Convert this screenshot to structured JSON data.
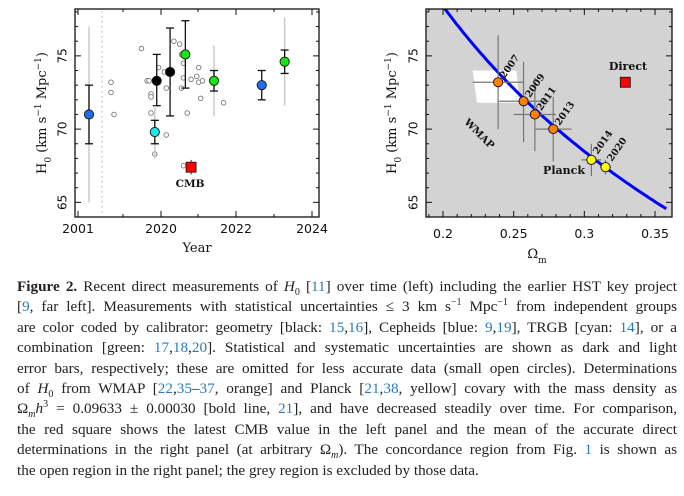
{
  "chart_data": [
    {
      "type": "scatter",
      "panel": "left",
      "title": "",
      "xlabel": "Year",
      "ylabel": "H0 (km s^-1 Mpc^-1)",
      "ylabel_parts": {
        "main": "H",
        "sub": "0",
        "units": " (km s",
        "sup1": "-1",
        "mid": " Mpc",
        "sup2": "-1",
        "end": ")"
      },
      "x_tick_labels": [
        "2001",
        "2020",
        "2022",
        "2024"
      ],
      "x_axis_note": "broken axis: 2001 point at far left separated by dotted line; main axis 2018.6–2024.1",
      "xlim": [
        2018.6,
        2024.1
      ],
      "ylim": [
        64,
        78.2
      ],
      "y_ticks": [
        65,
        70,
        75
      ],
      "accurate_points": [
        {
          "label": "HST key project",
          "x": "2001",
          "y": 71.0,
          "stat": [
            69.0,
            73.0
          ],
          "sys": [
            65.0,
            77.0
          ],
          "color": "#1e6ff0",
          "calibrator": "Cepheids"
        },
        {
          "x": 2019.85,
          "y": 73.3,
          "stat": [
            71.6,
            75.1
          ],
          "sys": null,
          "color": "#000000",
          "calibrator": "geometry"
        },
        {
          "x": 2019.8,
          "y": 69.8,
          "stat": [
            69.0,
            70.6
          ],
          "sys": [
            68.0,
            71.6
          ],
          "color": "#19e6e6",
          "calibrator": "TRGB"
        },
        {
          "x": 2020.2,
          "y": 73.9,
          "stat": [
            70.9,
            76.9
          ],
          "sys": null,
          "color": "#000000",
          "calibrator": "geometry"
        },
        {
          "x": 2020.6,
          "y": 75.1,
          "stat": [
            72.8,
            77.4
          ],
          "sys": null,
          "color": "#14e614",
          "calibrator": "combination"
        },
        {
          "x": 2021.35,
          "y": 73.3,
          "stat": [
            72.6,
            74.0
          ],
          "sys": [
            70.9,
            75.7
          ],
          "color": "#14e614",
          "calibrator": "combination"
        },
        {
          "x": 2022.6,
          "y": 73.0,
          "stat": [
            72.0,
            74.0
          ],
          "sys": null,
          "color": "#1e6ff0",
          "calibrator": "Cepheids"
        },
        {
          "x": 2023.2,
          "y": 74.6,
          "stat": [
            73.8,
            75.4
          ],
          "sys": [
            71.6,
            77.6
          ],
          "color": "#14e614",
          "calibrator": "combination"
        }
      ],
      "less_accurate_points": [
        {
          "x": "2001+",
          "y": 73.2
        },
        {
          "x": "2001+",
          "y": 72.5
        },
        {
          "x": "2001+",
          "y": 71.0
        },
        {
          "x": 2019.45,
          "y": 75.5
        },
        {
          "x": 2019.6,
          "y": 73.3
        },
        {
          "x": 2019.65,
          "y": 73.3
        },
        {
          "x": 2019.7,
          "y": 72.4
        },
        {
          "x": 2019.7,
          "y": 72.2
        },
        {
          "x": 2019.7,
          "y": 71.1
        },
        {
          "x": 2019.8,
          "y": 68.3
        },
        {
          "x": 2019.9,
          "y": 74.2
        },
        {
          "x": 2020.05,
          "y": 73.9
        },
        {
          "x": 2020.1,
          "y": 72.8
        },
        {
          "x": 2020.1,
          "y": 69.6
        },
        {
          "x": 2020.3,
          "y": 76.0
        },
        {
          "x": 2020.45,
          "y": 75.8
        },
        {
          "x": 2020.5,
          "y": 75.1
        },
        {
          "x": 2020.5,
          "y": 72.8
        },
        {
          "x": 2020.55,
          "y": 74.5
        },
        {
          "x": 2020.55,
          "y": 73.5
        },
        {
          "x": 2020.65,
          "y": 71.1
        },
        {
          "x": 2020.75,
          "y": 73.4
        },
        {
          "x": 2020.9,
          "y": 73.6
        },
        {
          "x": 2020.95,
          "y": 74.2
        },
        {
          "x": 2020.95,
          "y": 73.2
        },
        {
          "x": 2021.0,
          "y": 72.1
        },
        {
          "x": 2021.05,
          "y": 73.3
        },
        {
          "x": 2021.6,
          "y": 71.8
        },
        {
          "x": 2020.55,
          "y": 67.5
        }
      ],
      "reference": {
        "label": "CMB",
        "x": 2020.75,
        "y": 67.4,
        "err": [
          66.9,
          67.9
        ],
        "color": "#ff0000",
        "marker": "square"
      }
    },
    {
      "type": "scatter",
      "panel": "right",
      "xlabel": "Ωm",
      "ylabel": "H0 (km s^-1 Mpc^-1)",
      "ylabel_parts": {
        "main": "H",
        "sub": "0",
        "units": " (km s",
        "sup1": "-1",
        "mid": " Mpc",
        "sup2": "-1",
        "end": ")"
      },
      "xlabel_parts": {
        "main": "Ω",
        "sub": "m"
      },
      "x_tick_labels": [
        "0.2",
        "0.25",
        "0.3",
        "0.35"
      ],
      "x_ticks": [
        0.2,
        0.25,
        0.3,
        0.35
      ],
      "xlim": [
        0.19,
        0.357
      ],
      "ylim": [
        64,
        78.2
      ],
      "y_ticks": [
        65,
        70,
        75
      ],
      "y_tick_labels": [
        "65",
        "70",
        "75"
      ],
      "background": "#d3d3d3",
      "open_region": [
        [
          0.221,
          74.0
        ],
        [
          0.252,
          74.0
        ],
        [
          0.254,
          71.8
        ],
        [
          0.224,
          71.8
        ]
      ],
      "curve": {
        "label": "Ωm h^3 = 0.09633",
        "omh3": 0.09633,
        "color": "#0000ff"
      },
      "series": [
        {
          "name": "WMAP",
          "color": "#ff8000",
          "points": [
            {
              "label": "2007",
              "x": 0.239,
              "y": 73.2,
              "xerr": [
                0.221,
                0.257
              ],
              "yerr": [
                70.0,
                76.4
              ]
            },
            {
              "label": "2009",
              "x": 0.257,
              "y": 71.9,
              "xerr": [
                0.239,
                0.275
              ],
              "yerr": [
                69.1,
                74.6
              ]
            },
            {
              "label": "2011",
              "x": 0.265,
              "y": 71.0,
              "xerr": [
                0.25,
                0.28
              ],
              "yerr": [
                68.5,
                73.5
              ]
            },
            {
              "label": "2013",
              "x": 0.278,
              "y": 70.0,
              "xerr": [
                0.265,
                0.291
              ],
              "yerr": [
                67.8,
                72.2
              ]
            }
          ]
        },
        {
          "name": "Planck",
          "color": "#ffff00",
          "points": [
            {
              "label": "2014",
              "x": 0.305,
              "y": 67.9,
              "xerr": [
                0.298,
                0.312
              ],
              "yerr": [
                66.8,
                69.0
              ]
            },
            {
              "label": "2020",
              "x": 0.315,
              "y": 67.4,
              "xerr": [
                0.311,
                0.319
              ],
              "yerr": [
                66.9,
                67.9
              ]
            }
          ]
        }
      ],
      "reference": {
        "label": "Direct",
        "x": 0.329,
        "y": 73.2,
        "err": [
          72.9,
          73.5
        ],
        "color": "#ff0000",
        "marker": "square"
      },
      "annotations": [
        "WMAP",
        "Planck",
        "Direct"
      ]
    }
  ],
  "caption": {
    "lines": [
      [
        {
          "t": "Figure 2.",
          "c": "b"
        },
        {
          "t": " Recent direct measurements of "
        },
        {
          "t": "H",
          "c": "i"
        },
        {
          "t": "0",
          "c": "sub"
        },
        {
          "t": " ["
        },
        {
          "t": "11",
          "c": "ref"
        },
        {
          "t": "] over time (left) including the earlier HST key project"
        }
      ],
      [
        {
          "t": "["
        },
        {
          "t": "9",
          "c": "ref"
        },
        {
          "t": ", far left]. Measurements with statistical uncertainties ≤ 3 km s"
        },
        {
          "t": "−1",
          "c": "sup"
        },
        {
          "t": " Mpc"
        },
        {
          "t": "−1",
          "c": "sup"
        },
        {
          "t": " from independent groups"
        }
      ],
      [
        {
          "t": "are color coded by calibrator: geometry [black: "
        },
        {
          "t": "15",
          "c": "ref"
        },
        {
          "t": ","
        },
        {
          "t": "16",
          "c": "ref"
        },
        {
          "t": "], Cepheids [blue: "
        },
        {
          "t": "9",
          "c": "ref"
        },
        {
          "t": ","
        },
        {
          "t": "19",
          "c": "ref"
        },
        {
          "t": "], TRGB [cyan: "
        },
        {
          "t": "14",
          "c": "ref"
        },
        {
          "t": "], or a"
        }
      ],
      [
        {
          "t": "combination [green: "
        },
        {
          "t": "17",
          "c": "ref"
        },
        {
          "t": ","
        },
        {
          "t": "18",
          "c": "ref"
        },
        {
          "t": ","
        },
        {
          "t": "20",
          "c": "ref"
        },
        {
          "t": "]. Statistical and systematic uncertainties are shown as dark and light"
        }
      ],
      [
        {
          "t": "error bars, respectively; these are omitted for less accurate data (small open circles). Determinations"
        }
      ],
      [
        {
          "t": "of "
        },
        {
          "t": "H",
          "c": "i"
        },
        {
          "t": "0",
          "c": "sub"
        },
        {
          "t": " from WMAP ["
        },
        {
          "t": "22",
          "c": "ref"
        },
        {
          "t": ","
        },
        {
          "t": "35",
          "c": "ref"
        },
        {
          "t": "–"
        },
        {
          "t": "37",
          "c": "ref"
        },
        {
          "t": ", orange] and Planck ["
        },
        {
          "t": "21",
          "c": "ref"
        },
        {
          "t": ","
        },
        {
          "t": "38",
          "c": "ref"
        },
        {
          "t": ", yellow] covary with the mass density as"
        }
      ],
      [
        {
          "t": "Ω"
        },
        {
          "t": "m",
          "c": "subi"
        },
        {
          "t": "h",
          "c": "i"
        },
        {
          "t": "3",
          "c": "sup"
        },
        {
          "t": " = 0.09633 ± 0.00030 [bold line, "
        },
        {
          "t": "21",
          "c": "ref"
        },
        {
          "t": "], and have decreased steadily over time. For comparison,"
        }
      ],
      [
        {
          "t": "the red square shows the latest CMB value in the left panel and the mean of the accurate direct"
        }
      ],
      [
        {
          "t": "determinations in the right panel (at arbitrary Ω"
        },
        {
          "t": "m",
          "c": "subi"
        },
        {
          "t": "). The concordance region from Fig. "
        },
        {
          "t": "1",
          "c": "ref"
        },
        {
          "t": " is shown as"
        }
      ],
      [
        {
          "t": "the open region in the right panel; the grey region is excluded by those data."
        }
      ]
    ]
  }
}
